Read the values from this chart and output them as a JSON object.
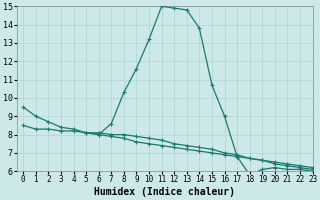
{
  "xlabel": "Humidex (Indice chaleur)",
  "xlim": [
    -0.5,
    23
  ],
  "ylim": [
    6,
    15
  ],
  "xticks": [
    0,
    1,
    2,
    3,
    4,
    5,
    6,
    7,
    8,
    9,
    10,
    11,
    12,
    13,
    14,
    15,
    16,
    17,
    18,
    19,
    20,
    21,
    22,
    23
  ],
  "yticks": [
    6,
    7,
    8,
    9,
    10,
    11,
    12,
    13,
    14,
    15
  ],
  "bg_color": "#cce8e8",
  "line_color": "#1a7a6e",
  "grid_color": "#add4d4",
  "line1_x": [
    0,
    1,
    2,
    3,
    4,
    5,
    6,
    7,
    8,
    9,
    10,
    11,
    12,
    13,
    14,
    15,
    16,
    17,
    18,
    19,
    20,
    21,
    22,
    23
  ],
  "line1_y": [
    9.5,
    9.0,
    8.7,
    8.4,
    8.3,
    8.1,
    8.0,
    8.6,
    10.3,
    11.6,
    13.2,
    15.0,
    14.9,
    14.8,
    13.8,
    10.7,
    9.0,
    6.8,
    5.8,
    6.1,
    6.2,
    6.1,
    6.1,
    6.0
  ],
  "line2_x": [
    0,
    1,
    2,
    3,
    4,
    5,
    6,
    7,
    8,
    9,
    10,
    11,
    12,
    13,
    14,
    15,
    16,
    17,
    18,
    19,
    20,
    21,
    22,
    23
  ],
  "line2_y": [
    8.5,
    8.3,
    8.3,
    8.2,
    8.2,
    8.1,
    8.1,
    8.0,
    8.0,
    7.9,
    7.8,
    7.7,
    7.5,
    7.4,
    7.3,
    7.2,
    7.0,
    6.9,
    6.7,
    6.6,
    6.4,
    6.3,
    6.2,
    6.1
  ],
  "line3_x": [
    5,
    6,
    7,
    8,
    9,
    10,
    11,
    12,
    13,
    14,
    15,
    16,
    17,
    18,
    19,
    20,
    21,
    22,
    23
  ],
  "line3_y": [
    8.1,
    8.0,
    7.9,
    7.8,
    7.6,
    7.5,
    7.4,
    7.3,
    7.2,
    7.1,
    7.0,
    6.9,
    6.8,
    6.7,
    6.6,
    6.5,
    6.4,
    6.3,
    6.2
  ],
  "tick_fontsize": 5.5,
  "xlabel_fontsize": 7
}
